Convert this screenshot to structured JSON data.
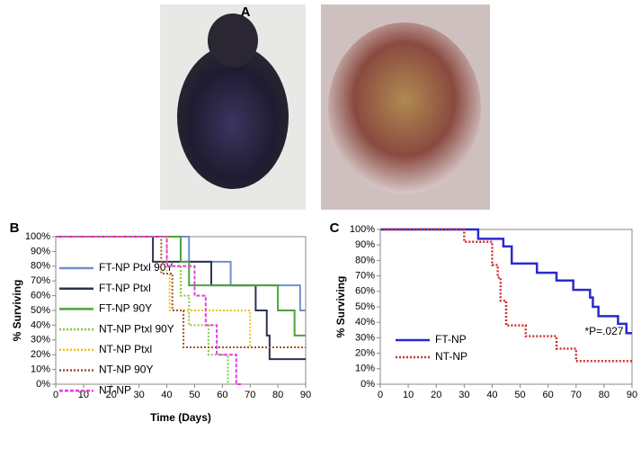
{
  "panels": [
    "A",
    "B",
    "C"
  ],
  "chart_data": [
    {
      "type": "step",
      "ylabel": "% Surviving",
      "xlabel": "Time (Days)",
      "xlim": [
        0,
        90
      ],
      "xticks": [
        0,
        10,
        20,
        30,
        40,
        50,
        60,
        70,
        80,
        90
      ],
      "ylim": [
        0,
        100
      ],
      "yticks": [
        {
          "value": 0,
          "label": "0%"
        },
        {
          "value": 10,
          "label": "10%"
        },
        {
          "value": 20,
          "label": "20%"
        },
        {
          "value": 30,
          "label": "30%"
        },
        {
          "value": 40,
          "label": "40%"
        },
        {
          "value": 50,
          "label": "50%"
        },
        {
          "value": 60,
          "label": "60%"
        },
        {
          "value": 70,
          "label": "70%"
        },
        {
          "value": 80,
          "label": "80%"
        },
        {
          "value": 90,
          "label": "90%"
        },
        {
          "value": 100,
          "label": "100%"
        }
      ],
      "series": [
        {
          "name": "FT-NP Ptxl 90Y",
          "color": "#6f8fd0",
          "style": "solid",
          "x": [
            0,
            48,
            63,
            88,
            90
          ],
          "values": [
            100,
            83,
            67,
            50,
            50
          ]
        },
        {
          "name": "FT-NP Ptxl",
          "color": "#2b3350",
          "style": "solid",
          "x": [
            0,
            35,
            56,
            72,
            76,
            77,
            90
          ],
          "values": [
            100,
            83,
            67,
            50,
            33,
            17,
            17
          ]
        },
        {
          "name": "FT-NP 90Y",
          "color": "#4ea23a",
          "style": "solid",
          "x": [
            0,
            45,
            48,
            80,
            86,
            90
          ],
          "values": [
            100,
            83,
            67,
            50,
            33,
            33
          ]
        },
        {
          "name": "NT-NP Ptxl 90Y",
          "color": "#8cc63f",
          "style": "dotted",
          "x": [
            0,
            40,
            45,
            48,
            55,
            62
          ],
          "values": [
            100,
            80,
            60,
            40,
            20,
            0
          ]
        },
        {
          "name": "NT-NP Ptxl",
          "color": "#f0c020",
          "style": "dotted",
          "x": [
            0,
            40,
            41,
            70,
            90
          ],
          "values": [
            100,
            75,
            50,
            25,
            25
          ]
        },
        {
          "name": "NT-NP 90Y",
          "color": "#a0522d",
          "style": "dotted",
          "x": [
            0,
            38,
            42,
            46,
            90
          ],
          "values": [
            100,
            75,
            50,
            25,
            25
          ]
        },
        {
          "name": "NT-NP",
          "color": "#e040e0",
          "style": "dashed",
          "x": [
            0,
            40,
            50,
            54,
            58,
            65,
            67
          ],
          "values": [
            100,
            80,
            60,
            40,
            20,
            0,
            0
          ]
        }
      ]
    },
    {
      "type": "step",
      "ylabel": "% Surviving",
      "annotation": "*P=.027",
      "xlim": [
        0,
        90
      ],
      "xticks": [
        0,
        10,
        20,
        30,
        40,
        50,
        60,
        70,
        80,
        90
      ],
      "ylim": [
        0,
        100
      ],
      "yticks": [
        {
          "value": 0,
          "label": "0%"
        },
        {
          "value": 10,
          "label": "10%"
        },
        {
          "value": 20,
          "label": "20%"
        },
        {
          "value": 30,
          "label": "30%"
        },
        {
          "value": 40,
          "label": "40%"
        },
        {
          "value": 50,
          "label": "50%"
        },
        {
          "value": 60,
          "label": "60%"
        },
        {
          "value": 70,
          "label": "70%"
        },
        {
          "value": 80,
          "label": "80%"
        },
        {
          "value": 90,
          "label": "90%"
        },
        {
          "value": 100,
          "label": "100%"
        }
      ],
      "series": [
        {
          "name": "FT-NP",
          "color": "#2a2ad0",
          "style": "solid",
          "x": [
            0,
            35,
            44,
            47,
            56,
            63,
            69,
            75,
            76,
            78,
            85,
            88,
            90
          ],
          "values": [
            100,
            94,
            89,
            78,
            72,
            67,
            61,
            56,
            50,
            44,
            39,
            33,
            33
          ]
        },
        {
          "name": "NT-NP",
          "color": "#d03030",
          "style": "dotted",
          "x": [
            0,
            30,
            40,
            42,
            43,
            45,
            52,
            63,
            70,
            90
          ],
          "values": [
            100,
            92,
            77,
            69,
            54,
            38,
            31,
            23,
            15,
            15
          ]
        }
      ]
    }
  ]
}
